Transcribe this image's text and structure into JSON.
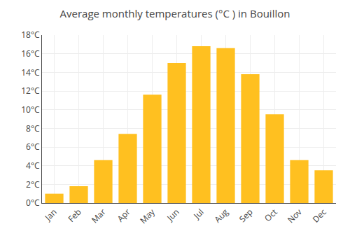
{
  "chart_data": {
    "type": "bar",
    "title": "Average monthly temperatures (°C ) in Bouillon",
    "categories": [
      "Jan",
      "Feb",
      "Mar",
      "Apr",
      "May",
      "Jun",
      "Jul",
      "Aug",
      "Sep",
      "Oct",
      "Nov",
      "Dec"
    ],
    "values": [
      1.0,
      1.8,
      4.6,
      7.4,
      11.6,
      15.0,
      16.8,
      16.6,
      13.8,
      9.5,
      4.6,
      3.5
    ],
    "color": "#FFC020",
    "ylim": [
      0,
      18
    ],
    "yticks": [
      {
        "value": 0,
        "label": "0°C"
      },
      {
        "value": 2,
        "label": "2°C"
      },
      {
        "value": 4,
        "label": "4°C"
      },
      {
        "value": 6,
        "label": "6°C"
      },
      {
        "value": 8,
        "label": "8°C"
      },
      {
        "value": 10,
        "label": "10°C"
      },
      {
        "value": 12,
        "label": "12°C"
      },
      {
        "value": 14,
        "label": "14°C"
      },
      {
        "value": 16,
        "label": "16°C"
      },
      {
        "value": 18,
        "label": "18°C"
      }
    ],
    "grid": true
  }
}
